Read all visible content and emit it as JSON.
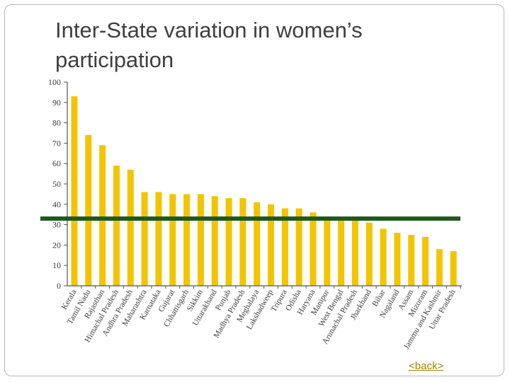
{
  "slide": {
    "title": "Inter-State variation in women’s participation",
    "back_link": "<back>"
  },
  "colors": {
    "bar": "#F2C500",
    "threshold_line": "#1E5A1E",
    "axis": "#555555",
    "text": "#3f3f3f"
  },
  "chart_data": {
    "type": "bar",
    "title": "",
    "xlabel": "",
    "ylabel": "",
    "ylim": [
      0,
      100
    ],
    "yticks": [
      0,
      10,
      20,
      30,
      40,
      50,
      60,
      70,
      80,
      90,
      100
    ],
    "categories": [
      "Kerala",
      "Tamil Nadu",
      "Rajasthan",
      "Himachal Pradesh",
      "Andhra Pradesh",
      "Maharashtra",
      "Karnataka",
      "Gujarat",
      "Chhattisgarh",
      "Sikkim",
      "Uttarakhand",
      "Punjab",
      "Madhya Pradesh",
      "Meghalaya",
      "Lakshadweep",
      "Tripura",
      "Odisha",
      "Haryana",
      "Manipur",
      "West Bengal",
      "Arunachal Pradesh",
      "Jharkhand",
      "Bihar",
      "Nagaland",
      "Assam",
      "Mizoram",
      "Jammu and Kashmir",
      "Uttar Pradesh"
    ],
    "values": [
      93,
      74,
      69,
      59,
      57,
      46,
      46,
      45,
      45,
      45,
      44,
      43,
      43,
      41,
      40,
      38,
      38,
      36,
      33,
      33,
      33,
      31,
      28,
      26,
      25,
      24,
      18,
      17
    ],
    "reference_line": {
      "value": 33,
      "label": ""
    }
  }
}
